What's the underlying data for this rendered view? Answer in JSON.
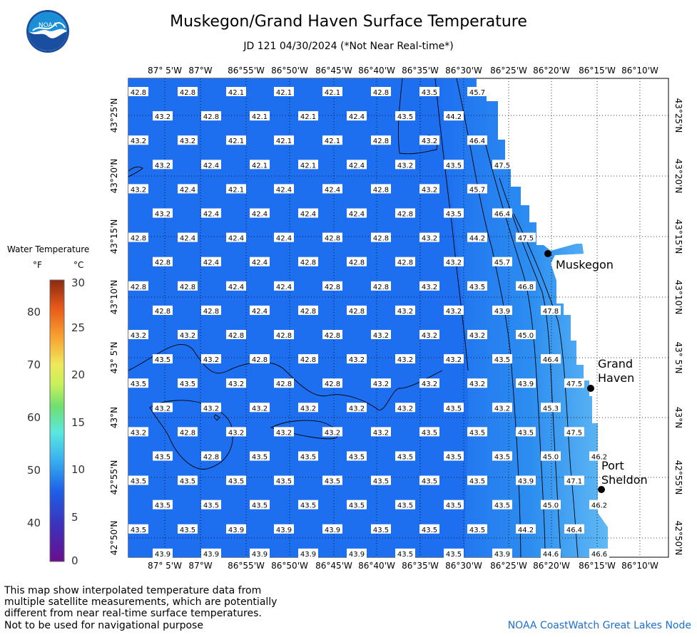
{
  "header": {
    "title": "Muskegon/Grand Haven Surface Temperature",
    "subtitle": "JD 121 04/30/2024 (*Not Near Real-time*)",
    "logo_text": "NOAA"
  },
  "map": {
    "longitude_labels": [
      "87° 5'W",
      "87°W",
      "86°55'W",
      "86°50'W",
      "86°45'W",
      "86°40'W",
      "86°35'W",
      "86°30'W",
      "86°25'W",
      "86°20'W",
      "86°15'W",
      "86°10'W"
    ],
    "latitude_labels": [
      "43°25'N",
      "43°20'N",
      "43°15'N",
      "43°10'N",
      "43° 5'N",
      "43°N",
      "42°55'N",
      "42°50'N"
    ],
    "cities": [
      {
        "name": "Muskegon"
      },
      {
        "name": "Grand\nHaven"
      },
      {
        "name": "Port\nSheldon"
      }
    ],
    "colors": {
      "water": "#1e6ff0",
      "water_warm": "#4fb8f2",
      "land": "#ffffff"
    },
    "temperature_grid_f": [
      [
        "42.8",
        "42.8",
        "42.1",
        "42.1",
        "42.1",
        "42.8",
        "43.5",
        "45.7"
      ],
      [
        "43.2",
        "42.8",
        "42.1",
        "42.1",
        "42.4",
        "43.5",
        "44.2"
      ],
      [
        "43.2",
        "43.2",
        "42.1",
        "42.1",
        "42.1",
        "42.8",
        "43.2",
        "46.4"
      ],
      [
        "43.2",
        "42.4",
        "42.1",
        "42.1",
        "42.4",
        "43.2",
        "43.5",
        "47.5"
      ],
      [
        "43.2",
        "42.4",
        "42.1",
        "42.4",
        "42.4",
        "42.8",
        "43.2",
        "45.7"
      ],
      [
        "43.2",
        "42.4",
        "42.4",
        "42.4",
        "42.4",
        "42.8",
        "43.5",
        "46.4"
      ],
      [
        "42.8",
        "42.4",
        "42.4",
        "42.4",
        "42.8",
        "42.8",
        "43.2",
        "44.2",
        "47.5"
      ],
      [
        "42.8",
        "42.4",
        "42.4",
        "42.8",
        "42.8",
        "42.8",
        "43.2",
        "45.7"
      ],
      [
        "42.8",
        "42.8",
        "42.4",
        "42.4",
        "42.8",
        "42.8",
        "43.2",
        "43.5",
        "46.8"
      ],
      [
        "42.8",
        "42.8",
        "42.4",
        "42.8",
        "42.8",
        "43.2",
        "43.2",
        "43.9",
        "47.8"
      ],
      [
        "43.2",
        "43.2",
        "42.8",
        "42.8",
        "42.8",
        "43.2",
        "43.2",
        "43.2",
        "45.0"
      ],
      [
        "43.5",
        "43.2",
        "42.8",
        "42.8",
        "43.2",
        "43.2",
        "43.2",
        "43.5",
        "46.4"
      ],
      [
        "43.5",
        "43.5",
        "43.2",
        "42.8",
        "42.8",
        "43.2",
        "43.2",
        "43.2",
        "43.9",
        "47.5"
      ],
      [
        "43.2",
        "43.2",
        "43.2",
        "43.2",
        "43.2",
        "43.2",
        "43.5",
        "43.2",
        "45.3"
      ],
      [
        "43.2",
        "42.8",
        "43.2",
        "43.2",
        "43.2",
        "43.2",
        "43.5",
        "43.5",
        "43.5",
        "47.5"
      ],
      [
        "43.5",
        "42.8",
        "43.5",
        "43.5",
        "43.5",
        "43.5",
        "43.5",
        "43.5",
        "45.0",
        "46.2"
      ],
      [
        "43.5",
        "43.5",
        "43.5",
        "43.5",
        "43.5",
        "43.5",
        "43.5",
        "43.5",
        "43.9",
        "47.1"
      ],
      [
        "43.5",
        "43.5",
        "43.5",
        "43.5",
        "43.5",
        "43.5",
        "43.5",
        "43.5",
        "45.0",
        "46.2"
      ],
      [
        "43.5",
        "43.5",
        "43.9",
        "43.9",
        "43.9",
        "43.5",
        "43.5",
        "43.5",
        "44.2",
        "46.4"
      ],
      [
        "43.9",
        "43.9",
        "43.9",
        "43.9",
        "43.9",
        "43.5",
        "43.5",
        "43.9",
        "44.6",
        "46.6"
      ]
    ]
  },
  "legend": {
    "title": "Water Temperature",
    "unit_f": "°F",
    "unit_c": "°C",
    "f_ticks": [
      "80",
      "70",
      "60",
      "50",
      "40"
    ],
    "c_ticks": [
      "30",
      "25",
      "20",
      "15",
      "10",
      "5",
      "0"
    ]
  },
  "footer": {
    "note": "This map show interpolated temperature data from\nmultiple satellite measurements, which are potentially\ndifferent from near real-time surface temperatures.",
    "warning": "Not to be used for navigational purpose",
    "credit": "NOAA CoastWatch Great Lakes Node"
  }
}
